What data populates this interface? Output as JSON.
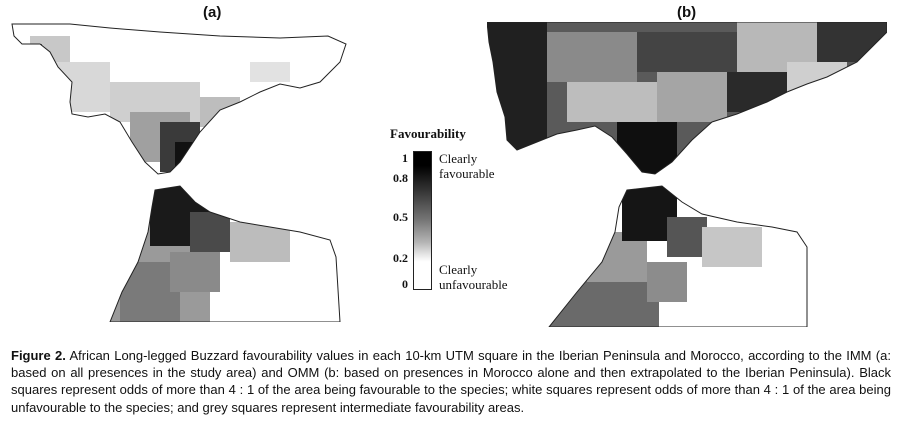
{
  "figure": {
    "panel_a_label": "(a)",
    "panel_b_label": "(b)",
    "legend": {
      "title": "Favourability",
      "ticks": [
        "1",
        "0.8",
        "0.5",
        "0.2",
        "0"
      ],
      "top_label_line1": "Clearly",
      "top_label_line2": "favourable",
      "bottom_label_line1": "Clearly",
      "bottom_label_line2": "unfavourable",
      "scale_colors": [
        "#000000",
        "#777777",
        "#ffffff"
      ]
    }
  },
  "caption": {
    "label": "Figure 2.",
    "text": "African Long-legged Buzzard favourability values in each 10-km UTM square in the Iberian Peninsula and Morocco, according to the IMM (a: based on all presences in the study area) and OMM (b: based on presences in Morocco alone and then extrapolated to the Iberian Peninsula). Black squares represent odds of more than 4 : 1 of the area being favourable to the species; white squares represent odds of more than 4 : 1 of the area being unfavourable to the species; and grey squares represent intermediate favourability areas."
  }
}
